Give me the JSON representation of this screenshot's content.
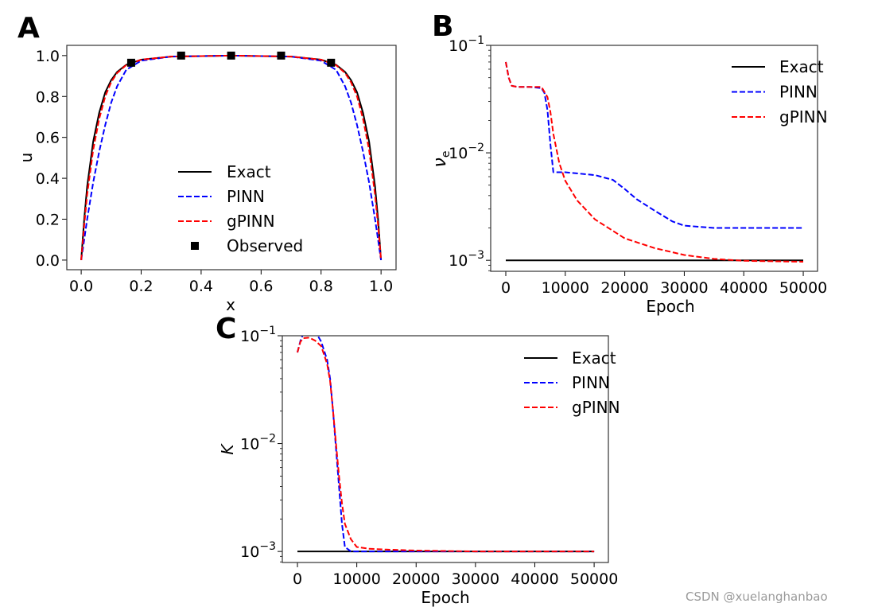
{
  "watermark": "CSDN @xuelanghanbao",
  "colors": {
    "exact": "#000000",
    "pinn": "#0000ff",
    "gpinn": "#ff0000",
    "observed": "#000000"
  },
  "chart_data": [
    {
      "panel": "A",
      "type": "line",
      "xlabel": "x",
      "ylabel": "u",
      "xlim": [
        -0.048,
        1.05
      ],
      "ylim": [
        -0.047,
        1.05
      ],
      "yscale": "linear",
      "grid": false,
      "legend_placement": "center",
      "xticks": [
        0.0,
        0.2,
        0.4,
        0.6,
        0.8,
        1.0
      ],
      "xtick_labels": [
        "0.0",
        "0.2",
        "0.4",
        "0.6",
        "0.8",
        "1.0"
      ],
      "yticks": [
        0.0,
        0.2,
        0.4,
        0.6,
        0.8,
        1.0
      ],
      "ytick_labels": [
        "0.0",
        "0.2",
        "0.4",
        "0.6",
        "0.8",
        "1.0"
      ],
      "series": [
        {
          "name": "Exact",
          "style": "solid",
          "color": "#000000",
          "x": [
            0,
            0.01,
            0.02,
            0.04,
            0.06,
            0.08,
            0.1,
            0.12,
            0.15,
            0.2,
            0.3,
            0.5,
            0.7,
            0.8,
            0.85,
            0.88,
            0.9,
            0.92,
            0.94,
            0.96,
            0.98,
            0.99,
            1.0
          ],
          "y": [
            0,
            0.2,
            0.36,
            0.58,
            0.72,
            0.82,
            0.88,
            0.92,
            0.955,
            0.98,
            0.995,
            1.0,
            0.995,
            0.98,
            0.955,
            0.92,
            0.88,
            0.82,
            0.72,
            0.58,
            0.36,
            0.2,
            0
          ]
        },
        {
          "name": "PINN",
          "style": "dashed",
          "color": "#0000ff",
          "x": [
            0,
            0.01,
            0.02,
            0.04,
            0.06,
            0.08,
            0.1,
            0.12,
            0.15,
            0.2,
            0.3,
            0.5,
            0.7,
            0.8,
            0.85,
            0.88,
            0.9,
            0.92,
            0.94,
            0.96,
            0.98,
            0.99,
            1.0
          ],
          "y": [
            0,
            0.1,
            0.2,
            0.38,
            0.53,
            0.66,
            0.77,
            0.85,
            0.93,
            0.975,
            0.995,
            1.0,
            0.995,
            0.975,
            0.93,
            0.85,
            0.77,
            0.66,
            0.53,
            0.38,
            0.2,
            0.1,
            0
          ]
        },
        {
          "name": "gPINN",
          "style": "dashed",
          "color": "#ff0000",
          "x": [
            0,
            0.01,
            0.02,
            0.04,
            0.06,
            0.08,
            0.1,
            0.12,
            0.15,
            0.2,
            0.3,
            0.5,
            0.7,
            0.8,
            0.85,
            0.88,
            0.9,
            0.92,
            0.94,
            0.96,
            0.98,
            0.99,
            1.0
          ],
          "y": [
            0,
            0.17,
            0.32,
            0.54,
            0.69,
            0.8,
            0.87,
            0.915,
            0.953,
            0.98,
            0.995,
            1.0,
            0.995,
            0.98,
            0.953,
            0.915,
            0.87,
            0.8,
            0.69,
            0.54,
            0.32,
            0.17,
            0
          ]
        },
        {
          "name": "Observed",
          "style": "markers",
          "color": "#000000",
          "x": [
            0.1667,
            0.3333,
            0.5,
            0.6667,
            0.8333
          ],
          "y": [
            0.965,
            1.0,
            1.0,
            1.0,
            0.965
          ]
        }
      ]
    },
    {
      "panel": "B",
      "type": "line",
      "xlabel": "Epoch",
      "ylabel": "νe",
      "xlim": [
        -2540,
        52400
      ],
      "ylim": [
        0.00079,
        0.1
      ],
      "yscale": "log",
      "grid": false,
      "legend_placement": "upper right",
      "xticks": [
        0,
        10000,
        20000,
        30000,
        40000,
        50000
      ],
      "xtick_labels": [
        "0",
        "10000",
        "20000",
        "30000",
        "40000",
        "50000"
      ],
      "yticks": [
        0.001,
        0.01,
        0.1
      ],
      "ytick_labels": [
        {
          "base": "10",
          "exp": "−3"
        },
        {
          "base": "10",
          "exp": "−2"
        },
        {
          "base": "10",
          "exp": "−1"
        }
      ],
      "series": [
        {
          "name": "Exact",
          "style": "solid",
          "color": "#000000",
          "x": [
            0,
            50000
          ],
          "y": [
            0.001,
            0.001
          ]
        },
        {
          "name": "PINN",
          "style": "dashed",
          "color": "#0000ff",
          "x": [
            0,
            500,
            1000,
            2000,
            4000,
            6000,
            6500,
            7000,
            7500,
            8000,
            10000,
            15000,
            18000,
            20000,
            22000,
            25000,
            28000,
            30000,
            35000,
            40000,
            50000
          ],
          "y": [
            0.07,
            0.05,
            0.042,
            0.041,
            0.041,
            0.04,
            0.036,
            0.025,
            0.012,
            0.0066,
            0.0066,
            0.0062,
            0.0056,
            0.0046,
            0.0037,
            0.0029,
            0.0023,
            0.0021,
            0.002,
            0.002,
            0.002
          ]
        },
        {
          "name": "gPINN",
          "style": "dashed",
          "color": "#ff0000",
          "x": [
            0,
            500,
            1000,
            2000,
            4000,
            6000,
            7000,
            7500,
            8000,
            9000,
            10000,
            12000,
            15000,
            20000,
            25000,
            30000,
            35000,
            40000,
            50000
          ],
          "y": [
            0.07,
            0.05,
            0.042,
            0.041,
            0.041,
            0.041,
            0.033,
            0.024,
            0.015,
            0.008,
            0.0055,
            0.0036,
            0.0024,
            0.0016,
            0.0013,
            0.00112,
            0.00103,
            0.00099,
            0.00097
          ]
        }
      ]
    },
    {
      "panel": "C",
      "type": "line",
      "xlabel": "Epoch",
      "ylabel": "K",
      "xlim": [
        -2550,
        52400
      ],
      "ylim": [
        0.00079,
        0.1
      ],
      "yscale": "log",
      "grid": false,
      "legend_placement": "upper right",
      "xticks": [
        0,
        10000,
        20000,
        30000,
        40000,
        50000
      ],
      "xtick_labels": [
        "0",
        "10000",
        "20000",
        "30000",
        "40000",
        "50000"
      ],
      "yticks": [
        0.001,
        0.01,
        0.1
      ],
      "ytick_labels": [
        {
          "base": "10",
          "exp": "−3"
        },
        {
          "base": "10",
          "exp": "−2"
        },
        {
          "base": "10",
          "exp": "−1"
        }
      ],
      "series": [
        {
          "name": "Exact",
          "style": "solid",
          "color": "#000000",
          "x": [
            0,
            50000
          ],
          "y": [
            0.001,
            0.001
          ]
        },
        {
          "name": "PINN",
          "style": "dashed",
          "color": "#0000ff",
          "x": [
            0,
            500,
            1000,
            2000,
            3000,
            4000,
            5000,
            5500,
            6000,
            6500,
            7000,
            7500,
            8000,
            9000,
            10000,
            20000,
            30000,
            50000
          ],
          "y": [
            0.07,
            0.09,
            0.105,
            0.115,
            0.11,
            0.088,
            0.06,
            0.04,
            0.02,
            0.009,
            0.004,
            0.0018,
            0.0011,
            0.001,
            0.001,
            0.001,
            0.001,
            0.001
          ]
        },
        {
          "name": "gPINN",
          "style": "dashed",
          "color": "#ff0000",
          "x": [
            0,
            500,
            1000,
            2000,
            3000,
            4000,
            5000,
            5500,
            6000,
            6500,
            7000,
            7500,
            8000,
            9000,
            10000,
            12000,
            15000,
            20000,
            30000,
            50000
          ],
          "y": [
            0.07,
            0.088,
            0.095,
            0.096,
            0.09,
            0.08,
            0.055,
            0.038,
            0.02,
            0.01,
            0.005,
            0.0028,
            0.0018,
            0.0013,
            0.0011,
            0.00106,
            0.00104,
            0.00102,
            0.001,
            0.001
          ]
        }
      ]
    }
  ]
}
